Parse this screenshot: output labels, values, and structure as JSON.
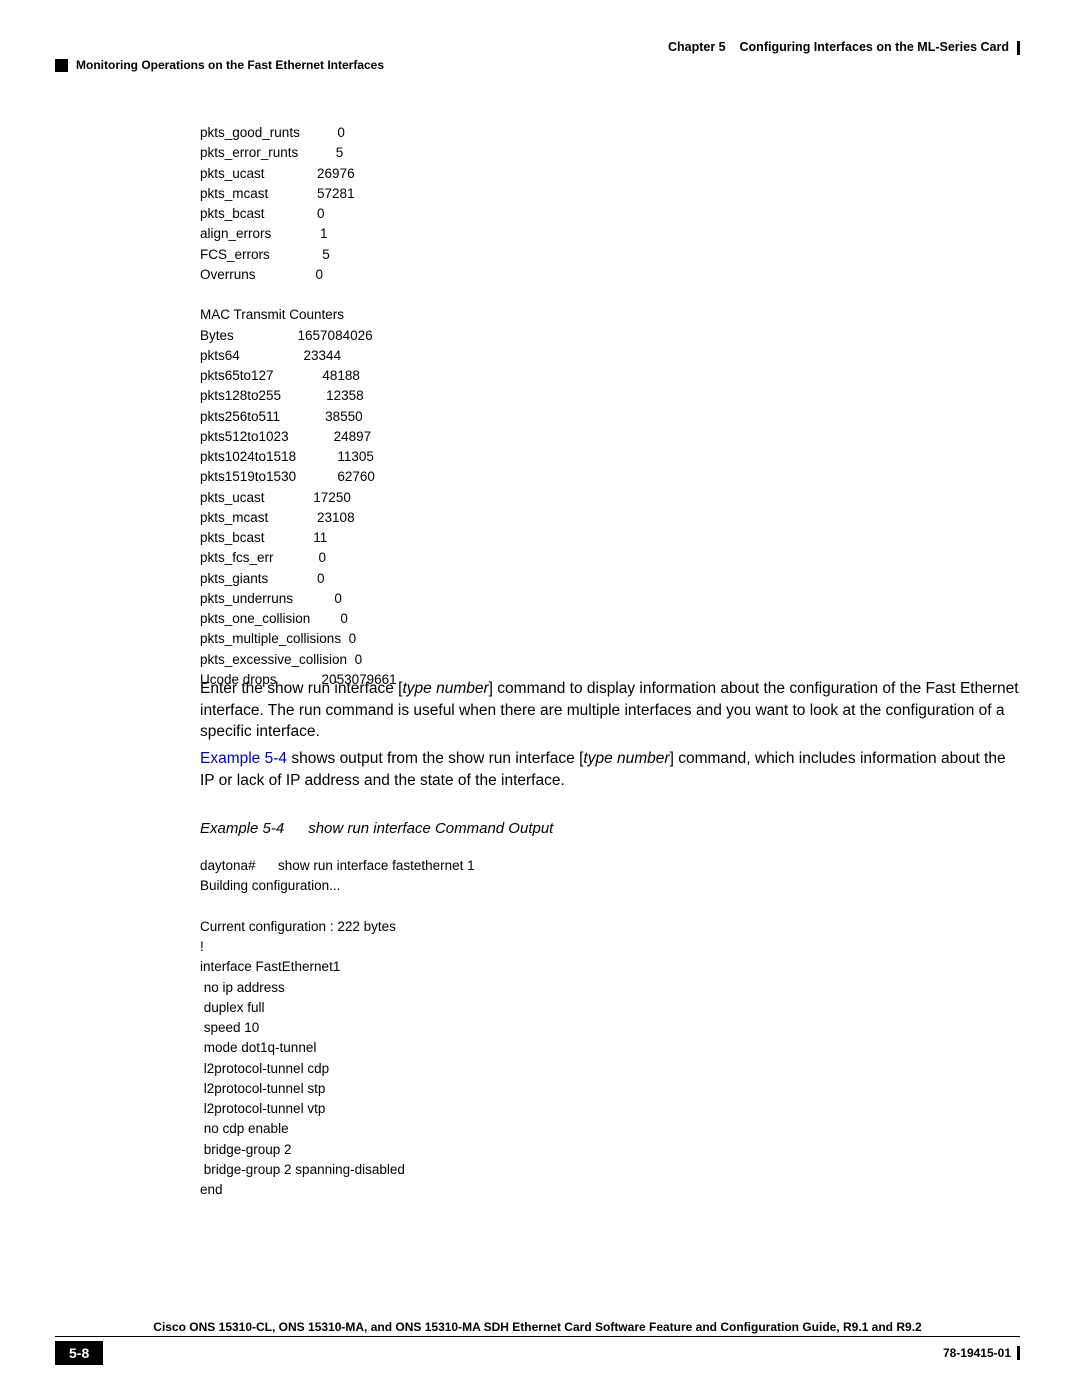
{
  "header": {
    "chapter_label": "Chapter 5",
    "chapter_title": "Configuring Interfaces on the ML-Series Card",
    "section_title": "Monitoring Operations on the Fast Ethernet Interfaces"
  },
  "code_block_1": "pkts_good_runts          0\npkts_error_runts          5\npkts_ucast              26976\npkts_mcast             57281\npkts_bcast              0\nalign_errors             1\nFCS_errors              5\nOverruns                0\n\nMAC Transmit Counters\nBytes                 1657084026\npkts64                 23344\npkts65to127             48188\npkts128to255            12358\npkts256to511            38550\npkts512to1023            24897\npkts1024to1518           11305\npkts1519to1530           62760\npkts_ucast             17250\npkts_mcast             23108\npkts_bcast             11\npkts_fcs_err            0\npkts_giants             0\npkts_underruns           0\npkts_one_collision        0\npkts_multiple_collisions  0\npkts_excessive_collision  0\nUcode drops            2053079661",
  "para1": {
    "t1": "Enter the",
    "cmd1": " show run interface ",
    "t2": "[",
    "arg1": "type number",
    "t3": "] ",
    "t4": "command to display information about the configuration of the Fast Ethernet interface. The ",
    "cmd2": "command is useful when there are ",
    "t5": "multiple interfaces and you want to look at the configuration of a specific interface.",
    "run_word": "run "
  },
  "para2": {
    "link": "Example 5-4",
    "t1": " shows output from the",
    "cmd": " show run interface ",
    "t2": "[",
    "arg": "type number",
    "t3": "] ",
    "t4": "command, which includes information about the IP or lack of IP address and the state of the interface."
  },
  "example_caption": {
    "label": "Example 5-4",
    "text": "show run interface Command Output"
  },
  "code_block_2": "daytona#      show run interface fastethernet 1\nBuilding configuration...\n\nCurrent configuration : 222 bytes\n!\ninterface FastEthernet1\n no ip address\n duplex full\n speed 10\n mode dot1q-tunnel\n l2protocol-tunnel cdp\n l2protocol-tunnel stp\n l2protocol-tunnel vtp\n no cdp enable\n bridge-group 2\n bridge-group 2 spanning-disabled\nend",
  "footer": {
    "guide_title": "Cisco ONS 15310-CL, ONS 15310-MA, and ONS 15310-MA SDH Ethernet Card Software Feature and Configuration Guide, R9.1 and R9.2",
    "page_number": "5-8",
    "doc_number": "78-19415-01"
  }
}
